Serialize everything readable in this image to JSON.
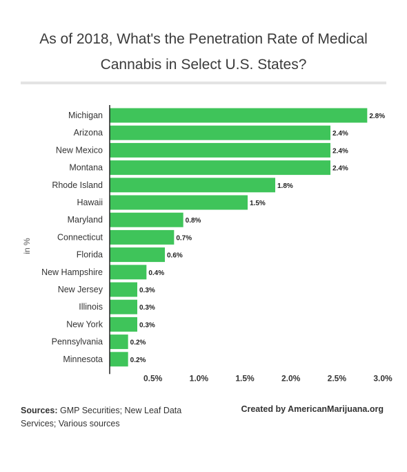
{
  "title": "As of 2018, What's the Penetration Rate of Medical Cannabis in Select U.S. States?",
  "footer": {
    "sources_label": "Sources:",
    "sources_text": "GMP Securities; New Leaf Data Services; Various sources",
    "credit": "Created by AmericanMarijuana.org"
  },
  "colors": {
    "bar": "#3fc45a",
    "axis": "#222222"
  },
  "chart_data": {
    "type": "bar",
    "orientation": "horizontal",
    "ylabel": "in %",
    "categories": [
      "Michigan",
      "Arizona",
      "New Mexico",
      "Montana",
      "Rhode Island",
      "Hawaii",
      "Maryland",
      "Connecticut",
      "Florida",
      "New Hampshire",
      "New Jersey",
      "Illinois",
      "New York",
      "Pennsylvania",
      "Minnesota"
    ],
    "values": [
      2.8,
      2.4,
      2.4,
      2.4,
      1.8,
      1.5,
      0.8,
      0.7,
      0.6,
      0.4,
      0.3,
      0.3,
      0.3,
      0.2,
      0.2
    ],
    "value_labels": [
      "2.8%",
      "2.4%",
      "2.4%",
      "2.4%",
      "1.8%",
      "1.5%",
      "0.8%",
      "0.7%",
      "0.6%",
      "0.4%",
      "0.3%",
      "0.3%",
      "0.3%",
      "0.2%",
      "0.2%"
    ],
    "xticks": [
      0.5,
      1.0,
      1.5,
      2.0,
      2.5,
      3.0
    ],
    "xtick_labels": [
      "0.5%",
      "1.0%",
      "1.5%",
      "2.0%",
      "2.5%",
      "3.0%"
    ],
    "xlim": [
      0,
      3.0
    ],
    "grid": false,
    "legend": "none"
  }
}
